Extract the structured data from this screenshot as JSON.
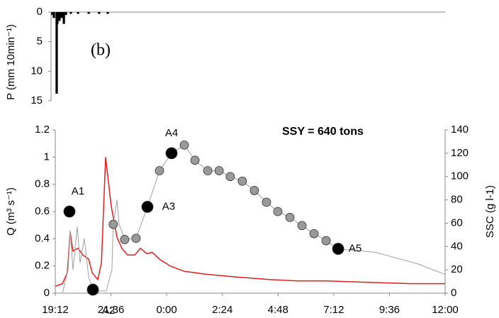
{
  "chart_data": [
    {
      "type": "bar",
      "ylabel": "P (mm 10min⁻¹)",
      "annotation": "(b)",
      "color": "#000000",
      "x": [
        19.08,
        19.14,
        19.26,
        19.29,
        19.38,
        19.47,
        19.57,
        19.66,
        19.87,
        20.18,
        20.64,
        21.09,
        21.46
      ],
      "values": [
        0.5,
        1,
        13.8,
        2,
        1.5,
        1,
        2,
        0.5,
        0.3,
        0.3,
        0.3,
        0.3,
        0.3
      ],
      "xlim": [
        19.2,
        36
      ],
      "ylim": [
        0,
        15
      ],
      "yticks": [
        0,
        5,
        10,
        15
      ],
      "y_inverted": true
    },
    {
      "type": "line",
      "ylabel": "Q (m³ s⁻¹)",
      "y2label": "SSC (g l-1)",
      "annotation": "SSY = 640 tons",
      "xlim": [
        19.2,
        36
      ],
      "xticks": [
        {
          "value": 19.2,
          "label": "19:12"
        },
        {
          "value": 21.6,
          "label": "21:36"
        },
        {
          "value": 24,
          "label": "0:00"
        },
        {
          "value": 26.4,
          "label": "2:24"
        },
        {
          "value": 28.8,
          "label": "4:48"
        },
        {
          "value": 31.2,
          "label": "7:12"
        },
        {
          "value": 33.6,
          "label": "9:36"
        },
        {
          "value": 36,
          "label": "12:00"
        }
      ],
      "ylim": [
        0,
        1.2
      ],
      "yticks": [
        0,
        0.2,
        0.4,
        0.6,
        0.8,
        1,
        1.2
      ],
      "y2lim": [
        0,
        140
      ],
      "y2ticks": [
        0,
        20,
        40,
        60,
        80,
        100,
        120,
        140
      ],
      "series": [
        {
          "kind": "line",
          "color": "#e02020",
          "x": [
            19.2,
            19.51,
            19.72,
            19.84,
            19.96,
            20.18,
            20.39,
            20.64,
            20.79,
            21.03,
            21.19,
            21.37,
            21.61,
            21.86,
            22.07,
            22.32,
            22.62,
            22.87,
            23.14,
            23.38,
            23.69,
            24.15,
            24.76,
            25.68,
            26.9,
            28.42,
            29.65,
            30.87,
            32.7,
            34.53,
            36
          ],
          "values": [
            0.05,
            0.07,
            0.15,
            0.45,
            0.31,
            0.33,
            0.28,
            0.25,
            0.15,
            0.1,
            0.22,
            1,
            0.64,
            0.41,
            0.33,
            0.28,
            0.28,
            0.33,
            0.29,
            0.3,
            0.25,
            0.2,
            0.16,
            0.14,
            0.12,
            0.1,
            0.09,
            0.09,
            0.08,
            0.07,
            0.07
          ]
        },
        {
          "kind": "line",
          "color": "#a0a0a0",
          "axis": "y2",
          "x": [
            19.51,
            19.75,
            19.84,
            19.96,
            20.15,
            20.27,
            20.45,
            20.64,
            20.82,
            21.09,
            21.4,
            21.64,
            21.7,
            21.86,
            21.95,
            22.19,
            22.68,
            23.17,
            23.69,
            24.21,
            24.76,
            25.22,
            25.77,
            26.26,
            26.74,
            27.26,
            27.78,
            28.3,
            28.79,
            29.31,
            29.83,
            30.35,
            30.87,
            31.39,
            31.94,
            33.0,
            33.92,
            34.84,
            36
          ],
          "values": [
            0,
            20,
            54,
            20,
            57,
            26,
            47,
            14,
            3,
            2,
            2,
            20,
            59,
            80,
            59,
            46,
            47,
            74,
            105,
            120,
            127,
            114,
            105,
            105,
            100,
            96,
            88,
            78,
            70,
            65,
            58,
            51,
            45,
            38,
            37,
            35,
            30,
            25,
            16
          ]
        },
        {
          "kind": "scatter",
          "color": "#999999",
          "axis": "y2",
          "size": 6,
          "x": [
            21.7,
            22.19,
            22.68,
            23.69,
            24.76,
            25.22,
            25.77,
            26.26,
            26.74,
            27.26,
            27.78,
            28.3,
            28.79,
            29.31,
            29.83,
            30.35,
            30.87
          ],
          "values": [
            59,
            46,
            47,
            105,
            127,
            114,
            105,
            105,
            100,
            96,
            88,
            78,
            70,
            65,
            58,
            51,
            45
          ]
        },
        {
          "kind": "scatter",
          "color": "#000000",
          "axis": "y2",
          "size": 8,
          "x": [
            19.81,
            20.82,
            23.17,
            24.21,
            31.39
          ],
          "values": [
            70,
            3,
            74,
            120,
            38
          ],
          "labels": [
            "A1",
            "A2",
            "A3",
            "A4",
            "A5"
          ]
        }
      ]
    }
  ]
}
